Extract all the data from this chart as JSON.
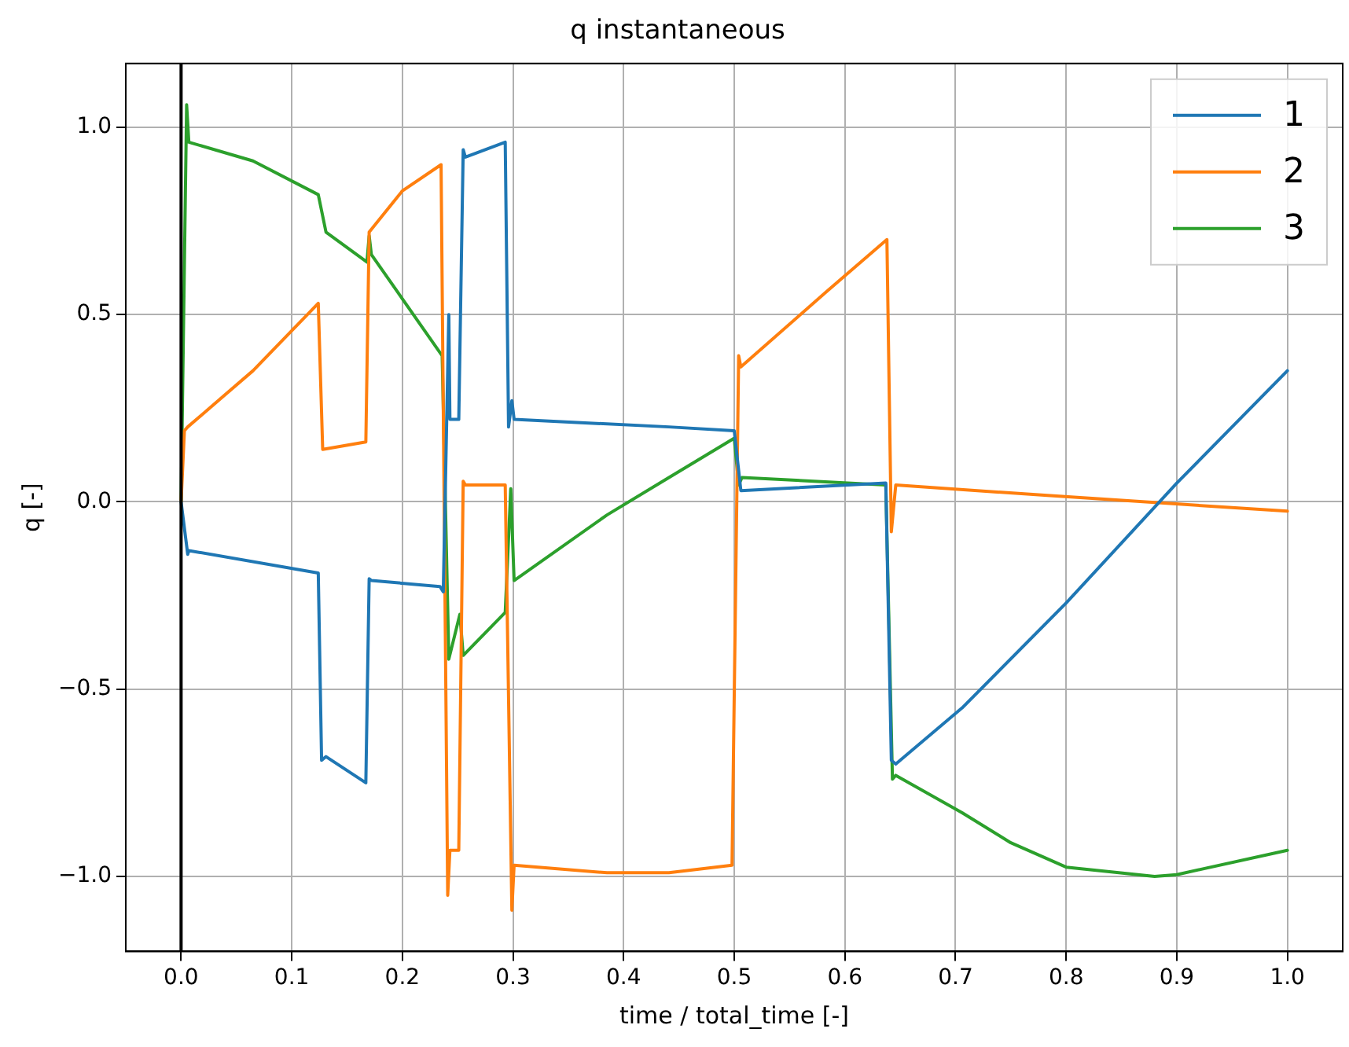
{
  "chart_data": {
    "type": "line",
    "title": "q instantaneous",
    "xlabel": "time / total_time [-]",
    "ylabel": "q [-]",
    "xlim": [
      -0.05,
      1.05
    ],
    "xticks": [
      {
        "value": 0,
        "label": "0.0"
      },
      {
        "value": 0.1,
        "label": "0.1"
      },
      {
        "value": 0.2,
        "label": "0.2"
      },
      {
        "value": 0.3,
        "label": "0.3"
      },
      {
        "value": 0.4,
        "label": "0.4"
      },
      {
        "value": 0.5,
        "label": "0.5"
      },
      {
        "value": 0.6,
        "label": "0.6"
      },
      {
        "value": 0.7,
        "label": "0.7"
      },
      {
        "value": 0.8,
        "label": "0.8"
      },
      {
        "value": 0.9,
        "label": "0.9"
      },
      {
        "value": 1,
        "label": "1.0"
      }
    ],
    "ylim": [
      -1.2,
      1.17
    ],
    "yticks": [
      {
        "value": -1,
        "label": "−1.0"
      },
      {
        "value": -0.5,
        "label": "−0.5"
      },
      {
        "value": 0,
        "label": "0.0"
      },
      {
        "value": 0.5,
        "label": "0.5"
      },
      {
        "value": 1,
        "label": "1.0"
      }
    ],
    "grid": true,
    "legend": "top right",
    "marker": "none",
    "line_style": "solid",
    "ref_lines": [
      {
        "axis": "x",
        "value": 0,
        "color": "#000000"
      }
    ],
    "series": [
      {
        "name": "1",
        "color": "#1f77b4",
        "x": [
          0,
          0.006,
          0.007,
          0.124,
          0.127,
          0.131,
          0.167,
          0.17,
          0.172,
          0.234,
          0.237,
          0.242,
          0.243,
          0.251,
          0.255,
          0.257,
          0.293,
          0.296,
          0.299,
          0.301,
          0.441,
          0.5,
          0.506,
          0.637,
          0.642,
          0.646,
          0.706,
          0.8,
          0.9,
          0.95,
          1.0
        ],
        "values": [
          0,
          -0.14,
          -0.13,
          -0.19,
          -0.69,
          -0.68,
          -0.75,
          -0.205,
          -0.21,
          -0.226,
          -0.24,
          0.5,
          0.22,
          0.22,
          0.94,
          0.92,
          0.96,
          0.2,
          0.27,
          0.22,
          0.2,
          0.19,
          0.03,
          0.05,
          -0.69,
          -0.7,
          -0.55,
          -0.27,
          0.05,
          0.2,
          0.35
        ]
      },
      {
        "name": "2",
        "color": "#ff7f0e",
        "x": [
          0,
          0.003,
          0.006,
          0.065,
          0.124,
          0.128,
          0.167,
          0.17,
          0.2,
          0.235,
          0.241,
          0.243,
          0.251,
          0.255,
          0.257,
          0.293,
          0.299,
          0.301,
          0.385,
          0.441,
          0.498,
          0.504,
          0.506,
          0.583,
          0.638,
          0.642,
          0.646,
          0.783,
          1.0
        ],
        "values": [
          0,
          0.19,
          0.2,
          0.35,
          0.53,
          0.14,
          0.16,
          0.72,
          0.83,
          0.9,
          -1.05,
          -0.93,
          -0.93,
          0.055,
          0.045,
          0.045,
          -1.09,
          -0.97,
          -0.99,
          -0.99,
          -0.97,
          0.39,
          0.36,
          0.56,
          0.7,
          -0.08,
          0.045,
          0.017,
          -0.025
        ]
      },
      {
        "name": "3",
        "color": "#2ca02c",
        "x": [
          0,
          0.005,
          0.007,
          0.065,
          0.124,
          0.131,
          0.168,
          0.17,
          0.172,
          0.236,
          0.242,
          0.252,
          0.255,
          0.293,
          0.298,
          0.301,
          0.385,
          0.441,
          0.5,
          0.504,
          0.507,
          0.637,
          0.643,
          0.646,
          0.706,
          0.75,
          0.8,
          0.88,
          0.9,
          1.0
        ],
        "values": [
          0,
          1.06,
          0.96,
          0.91,
          0.82,
          0.72,
          0.64,
          0.71,
          0.66,
          0.39,
          -0.42,
          -0.3,
          -0.41,
          -0.295,
          0.035,
          -0.21,
          -0.035,
          0.065,
          0.17,
          0.045,
          0.065,
          0.045,
          -0.74,
          -0.73,
          -0.83,
          -0.91,
          -0.975,
          -1.0,
          -0.995,
          -0.93
        ]
      }
    ]
  }
}
